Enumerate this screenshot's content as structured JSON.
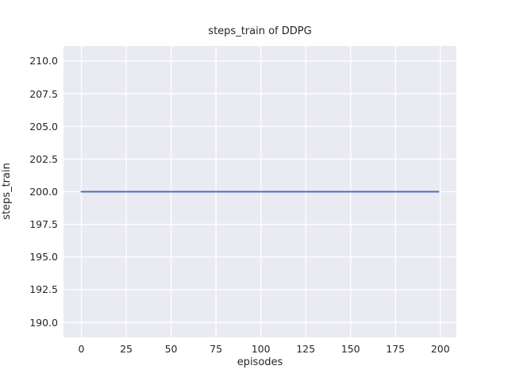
{
  "colors": {
    "figure_background": "#ffffff",
    "plot_background": "#eaeaf2",
    "grid": "#ffffff",
    "line": "#4c72b0",
    "text": "#262626"
  },
  "chart_data": {
    "type": "line",
    "title": "steps_train of DDPG",
    "xlabel": "episodes",
    "ylabel": "steps_train",
    "xlim": [
      -9.95,
      208.95
    ],
    "ylim": [
      188.85,
      211.15
    ],
    "xticks": [
      0,
      25,
      50,
      75,
      100,
      125,
      150,
      175,
      200
    ],
    "xtick_labels": [
      "0",
      "25",
      "50",
      "75",
      "100",
      "125",
      "150",
      "175",
      "200"
    ],
    "yticks": [
      190.0,
      192.5,
      195.0,
      197.5,
      200.0,
      202.5,
      205.0,
      207.5,
      210.0
    ],
    "ytick_labels": [
      "190.0",
      "192.5",
      "195.0",
      "197.5",
      "200.0",
      "202.5",
      "205.0",
      "207.5",
      "210.0"
    ],
    "grid": true,
    "legend_position": "none",
    "series": [
      {
        "name": "steps_train",
        "x": [
          0,
          199
        ],
        "y": [
          200,
          200
        ],
        "constant_value": 200,
        "color": "#4c72b0",
        "linewidth": 2.1
      }
    ]
  }
}
